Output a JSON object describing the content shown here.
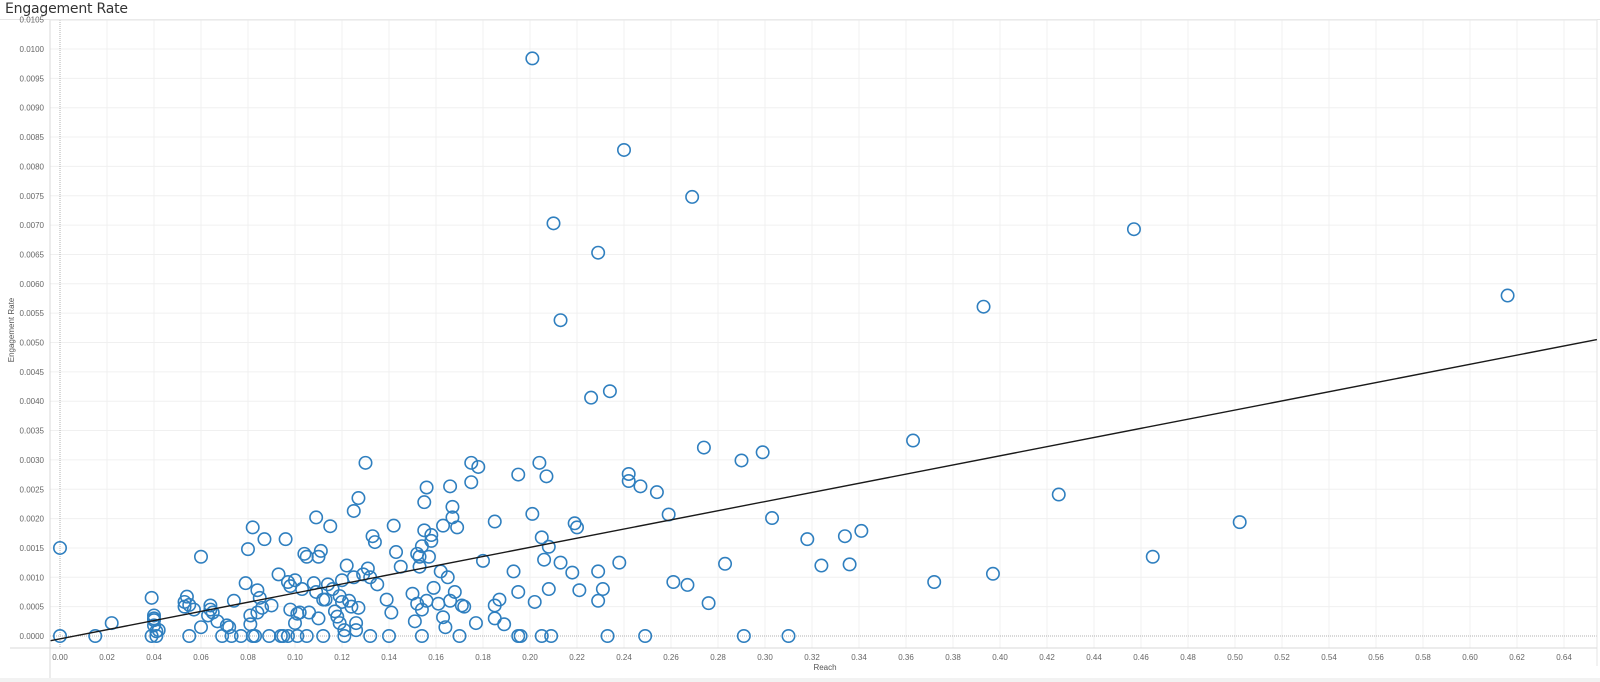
{
  "title": "Engagement Rate",
  "colors": {
    "marker": "#2f7fbf",
    "trend": "#1a1a1a",
    "grid": "#f0f0f0",
    "axis": "#d9d9d9",
    "zero_line": "#b0b0b0"
  },
  "chart_data": {
    "type": "scatter",
    "title": "Engagement Rate",
    "xlabel": "Reach",
    "ylabel": "Engagement Rate",
    "xlim": [
      -0.004,
      0.654
    ],
    "ylim": [
      -0.0002,
      0.0105
    ],
    "x_ticks": [
      "0.00",
      "0.02",
      "0.04",
      "0.06",
      "0.08",
      "0.10",
      "0.12",
      "0.14",
      "0.16",
      "0.18",
      "0.20",
      "0.22",
      "0.24",
      "0.26",
      "0.28",
      "0.30",
      "0.32",
      "0.34",
      "0.36",
      "0.38",
      "0.40",
      "0.42",
      "0.44",
      "0.46",
      "0.48",
      "0.50",
      "0.52",
      "0.54",
      "0.56",
      "0.58",
      "0.60",
      "0.62",
      "0.64"
    ],
    "y_ticks": [
      "0.0000",
      "0.0005",
      "0.0010",
      "0.0015",
      "0.0020",
      "0.0025",
      "0.0030",
      "0.0035",
      "0.0040",
      "0.0045",
      "0.0050",
      "0.0055",
      "0.0060",
      "0.0065",
      "0.0070",
      "0.0075",
      "0.0080",
      "0.0085",
      "0.0090",
      "0.0095",
      "0.0100",
      "0.0105"
    ],
    "grid": true,
    "legend": null,
    "trendline": {
      "type": "linear",
      "x": [
        -0.004,
        0.654
      ],
      "y": [
        -8e-05,
        0.00505
      ]
    },
    "points": [
      [
        0.201,
        0.00984
      ],
      [
        0.24,
        0.00828
      ],
      [
        0.269,
        0.00748
      ],
      [
        0.21,
        0.00703
      ],
      [
        0.229,
        0.00653
      ],
      [
        0.213,
        0.00538
      ],
      [
        0.457,
        0.00693
      ],
      [
        0.393,
        0.00561
      ],
      [
        0.616,
        0.0058
      ],
      [
        0.226,
        0.00406
      ],
      [
        0.234,
        0.00417
      ],
      [
        0.363,
        0.00333
      ],
      [
        0.274,
        0.00321
      ],
      [
        0.299,
        0.00313
      ],
      [
        0.29,
        0.00299
      ],
      [
        0.425,
        0.00241
      ],
      [
        0.502,
        0.00194
      ],
      [
        0.465,
        0.00135
      ],
      [
        0.397,
        0.00106
      ],
      [
        0.372,
        0.00092
      ],
      [
        0.303,
        0.00201
      ],
      [
        0.341,
        0.00179
      ],
      [
        0.334,
        0.0017
      ],
      [
        0.318,
        0.00165
      ],
      [
        0.324,
        0.0012
      ],
      [
        0.336,
        0.00122
      ],
      [
        0.283,
        0.00123
      ],
      [
        0.259,
        0.00207
      ],
      [
        0.254,
        0.00245
      ],
      [
        0.247,
        0.00255
      ],
      [
        0.242,
        0.00276
      ],
      [
        0.242,
        0.00264
      ],
      [
        0.261,
        0.00092
      ],
      [
        0.267,
        0.00087
      ],
      [
        0.276,
        0.00056
      ],
      [
        0.291,
        0.0
      ],
      [
        0.31,
        0.0
      ],
      [
        0.249,
        0.0
      ],
      [
        0.233,
        0.0
      ],
      [
        0.0,
        0.0015
      ],
      [
        0.0,
        0.0
      ],
      [
        0.015,
        0.0
      ],
      [
        0.022,
        0.00022
      ],
      [
        0.039,
        0.00065
      ],
      [
        0.04,
        0.0003
      ],
      [
        0.04,
        0.00027
      ],
      [
        0.04,
        0.00018
      ],
      [
        0.041,
        8e-05
      ],
      [
        0.039,
        0.0
      ],
      [
        0.041,
        0.0
      ],
      [
        0.042,
        0.0001
      ],
      [
        0.04,
        0.00035
      ],
      [
        0.053,
        0.00058
      ],
      [
        0.053,
        0.0005
      ],
      [
        0.054,
        0.00067
      ],
      [
        0.055,
        0.00053
      ],
      [
        0.057,
        0.00045
      ],
      [
        0.055,
        0.0
      ],
      [
        0.06,
        0.00135
      ],
      [
        0.06,
        0.00015
      ],
      [
        0.063,
        0.00035
      ],
      [
        0.064,
        0.00052
      ],
      [
        0.064,
        0.00045
      ],
      [
        0.065,
        0.0004
      ],
      [
        0.067,
        0.00025
      ],
      [
        0.069,
        0.0
      ],
      [
        0.071,
        0.00018
      ],
      [
        0.072,
        0.00015
      ],
      [
        0.073,
        0.0
      ],
      [
        0.074,
        0.0006
      ],
      [
        0.077,
        0.0
      ],
      [
        0.079,
        0.0009
      ],
      [
        0.08,
        0.00148
      ],
      [
        0.081,
        0.00035
      ],
      [
        0.081,
        0.0002
      ],
      [
        0.082,
        0.00185
      ],
      [
        0.082,
        0.0
      ],
      [
        0.083,
        0.0
      ],
      [
        0.084,
        0.00078
      ],
      [
        0.084,
        0.0004
      ],
      [
        0.085,
        0.00065
      ],
      [
        0.086,
        0.00048
      ],
      [
        0.087,
        0.00165
      ],
      [
        0.089,
        0.0
      ],
      [
        0.09,
        0.00052
      ],
      [
        0.093,
        0.00105
      ],
      [
        0.094,
        0.0
      ],
      [
        0.095,
        0.0
      ],
      [
        0.096,
        0.00165
      ],
      [
        0.097,
        0.00092
      ],
      [
        0.097,
        0.0
      ],
      [
        0.098,
        0.00085
      ],
      [
        0.098,
        0.00045
      ],
      [
        0.1,
        0.00022
      ],
      [
        0.1,
        0.00095
      ],
      [
        0.101,
        0.0
      ],
      [
        0.101,
        0.00038
      ],
      [
        0.102,
        0.0004
      ],
      [
        0.103,
        0.0008
      ],
      [
        0.104,
        0.0014
      ],
      [
        0.105,
        0.00135
      ],
      [
        0.105,
        0.0
      ],
      [
        0.106,
        0.0004
      ],
      [
        0.108,
        0.0009
      ],
      [
        0.109,
        0.00202
      ],
      [
        0.109,
        0.00075
      ],
      [
        0.11,
        0.0003
      ],
      [
        0.11,
        0.00135
      ],
      [
        0.111,
        0.00145
      ],
      [
        0.112,
        0.0
      ],
      [
        0.112,
        0.00062
      ],
      [
        0.113,
        0.00062
      ],
      [
        0.114,
        0.00088
      ],
      [
        0.115,
        0.00187
      ],
      [
        0.116,
        0.0008
      ],
      [
        0.117,
        0.00042
      ],
      [
        0.118,
        0.00033
      ],
      [
        0.119,
        0.00068
      ],
      [
        0.119,
        0.00022
      ],
      [
        0.12,
        0.00095
      ],
      [
        0.12,
        0.00058
      ],
      [
        0.121,
        0.0001
      ],
      [
        0.121,
        0.0
      ],
      [
        0.122,
        0.0012
      ],
      [
        0.123,
        0.0006
      ],
      [
        0.124,
        0.0005
      ],
      [
        0.125,
        0.001
      ],
      [
        0.125,
        0.00213
      ],
      [
        0.126,
        0.00022
      ],
      [
        0.126,
        0.0001
      ],
      [
        0.127,
        0.00235
      ],
      [
        0.127,
        0.00048
      ],
      [
        0.129,
        0.00105
      ],
      [
        0.13,
        0.00295
      ],
      [
        0.131,
        0.00115
      ],
      [
        0.132,
        0.0
      ],
      [
        0.132,
        0.001
      ],
      [
        0.133,
        0.0017
      ],
      [
        0.134,
        0.0016
      ],
      [
        0.135,
        0.00088
      ],
      [
        0.139,
        0.00062
      ],
      [
        0.14,
        0.0
      ],
      [
        0.141,
        0.0004
      ],
      [
        0.142,
        0.00188
      ],
      [
        0.143,
        0.00143
      ],
      [
        0.145,
        0.00118
      ],
      [
        0.15,
        0.00072
      ],
      [
        0.151,
        0.00025
      ],
      [
        0.152,
        0.00055
      ],
      [
        0.152,
        0.0014
      ],
      [
        0.153,
        0.00118
      ],
      [
        0.153,
        0.00135
      ],
      [
        0.154,
        0.00153
      ],
      [
        0.154,
        0.00045
      ],
      [
        0.154,
        0.0
      ],
      [
        0.155,
        0.00228
      ],
      [
        0.155,
        0.0018
      ],
      [
        0.156,
        0.00253
      ],
      [
        0.156,
        0.0006
      ],
      [
        0.157,
        0.00135
      ],
      [
        0.158,
        0.00172
      ],
      [
        0.158,
        0.00162
      ],
      [
        0.159,
        0.00082
      ],
      [
        0.161,
        0.00055
      ],
      [
        0.162,
        0.0011
      ],
      [
        0.163,
        0.00032
      ],
      [
        0.163,
        0.00188
      ],
      [
        0.164,
        0.00015
      ],
      [
        0.165,
        0.001
      ],
      [
        0.166,
        0.00255
      ],
      [
        0.166,
        0.0006
      ],
      [
        0.167,
        0.00202
      ],
      [
        0.167,
        0.0022
      ],
      [
        0.168,
        0.00075
      ],
      [
        0.169,
        0.00185
      ],
      [
        0.17,
        0.0
      ],
      [
        0.171,
        0.00052
      ],
      [
        0.172,
        0.0005
      ],
      [
        0.175,
        0.00262
      ],
      [
        0.175,
        0.00295
      ],
      [
        0.177,
        0.00022
      ],
      [
        0.178,
        0.00288
      ],
      [
        0.18,
        0.00128
      ],
      [
        0.185,
        0.00195
      ],
      [
        0.185,
        0.00052
      ],
      [
        0.185,
        0.0003
      ],
      [
        0.187,
        0.00062
      ],
      [
        0.189,
        0.0002
      ],
      [
        0.193,
        0.0011
      ],
      [
        0.195,
        0.00075
      ],
      [
        0.195,
        0.00275
      ],
      [
        0.195,
        0.0
      ],
      [
        0.196,
        0.0
      ],
      [
        0.201,
        0.00208
      ],
      [
        0.202,
        0.00058
      ],
      [
        0.204,
        0.00295
      ],
      [
        0.205,
        0.00168
      ],
      [
        0.205,
        0.0
      ],
      [
        0.206,
        0.0013
      ],
      [
        0.207,
        0.00272
      ],
      [
        0.208,
        0.00152
      ],
      [
        0.208,
        0.0008
      ],
      [
        0.209,
        0.0
      ],
      [
        0.213,
        0.00125
      ],
      [
        0.218,
        0.00108
      ],
      [
        0.219,
        0.00192
      ],
      [
        0.22,
        0.00185
      ],
      [
        0.221,
        0.00078
      ],
      [
        0.229,
        0.0006
      ],
      [
        0.229,
        0.0011
      ],
      [
        0.231,
        0.0008
      ],
      [
        0.238,
        0.00125
      ]
    ]
  }
}
